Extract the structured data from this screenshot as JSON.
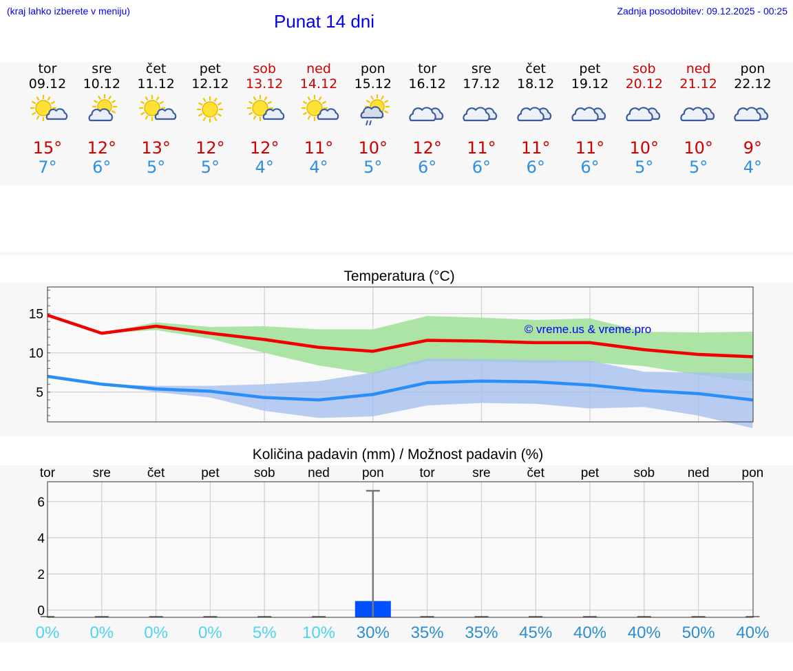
{
  "header": {
    "hint": "(kraj lahko izberete v meniju)",
    "title": "Punat 14 dni",
    "updated": "Zadnja posodobitev: 09.12.2025 - 00:25"
  },
  "colors": {
    "link": "#0000ee",
    "tmax": "#cc0000",
    "tmin": "#2e8ee0",
    "max_band": "#a8e3a0",
    "min_band": "#a7c1f0",
    "rain_bar": "#0050ff"
  },
  "days": [
    {
      "name": "tor",
      "date": "09.12",
      "icon": "sun-cloud-icon",
      "max": "15°",
      "min": "7°",
      "weekend": false
    },
    {
      "name": "sre",
      "date": "10.12",
      "icon": "cloud-sun-icon",
      "max": "12°",
      "min": "6°",
      "weekend": false
    },
    {
      "name": "čet",
      "date": "11.12",
      "icon": "sun-cloud-icon",
      "max": "13°",
      "min": "5°",
      "weekend": false
    },
    {
      "name": "pet",
      "date": "12.12",
      "icon": "sun-icon",
      "max": "12°",
      "min": "5°",
      "weekend": false
    },
    {
      "name": "sob",
      "date": "13.12",
      "icon": "sun-cloud-icon",
      "max": "12°",
      "min": "4°",
      "weekend": true
    },
    {
      "name": "ned",
      "date": "14.12",
      "icon": "sun-cloud-icon",
      "max": "11°",
      "min": "4°",
      "weekend": true
    },
    {
      "name": "pon",
      "date": "15.12",
      "icon": "sun-cloud-rain-icon",
      "max": "10°",
      "min": "5°",
      "weekend": false
    },
    {
      "name": "tor",
      "date": "16.12",
      "icon": "cloud-icon",
      "max": "12°",
      "min": "6°",
      "weekend": false
    },
    {
      "name": "sre",
      "date": "17.12",
      "icon": "cloud-icon",
      "max": "11°",
      "min": "6°",
      "weekend": false
    },
    {
      "name": "čet",
      "date": "18.12",
      "icon": "cloud-icon",
      "max": "11°",
      "min": "6°",
      "weekend": false
    },
    {
      "name": "pet",
      "date": "19.12",
      "icon": "cloud-icon",
      "max": "11°",
      "min": "6°",
      "weekend": false
    },
    {
      "name": "sob",
      "date": "20.12",
      "icon": "cloud-icon",
      "max": "10°",
      "min": "5°",
      "weekend": true
    },
    {
      "name": "ned",
      "date": "21.12",
      "icon": "cloud-icon",
      "max": "10°",
      "min": "5°",
      "weekend": true
    },
    {
      "name": "pon",
      "date": "22.12",
      "icon": "cloud-icon",
      "max": "9°",
      "min": "4°",
      "weekend": false
    }
  ],
  "chart_data": [
    {
      "type": "line",
      "title": "Temperatura (°C)",
      "watermark": "© vreme.us & vreme.pro",
      "ylim": [
        1.2,
        18.4
      ],
      "yticks": [
        5,
        10,
        15
      ],
      "series": [
        {
          "name": "max",
          "values": [
            14.8,
            12.5,
            13.4,
            12.5,
            11.7,
            10.7,
            10.2,
            11.6,
            11.5,
            11.3,
            11.3,
            10.4,
            9.8,
            9.5
          ]
        },
        {
          "name": "min",
          "values": [
            7.0,
            6.0,
            5.4,
            5.1,
            4.3,
            4.0,
            4.7,
            6.2,
            6.4,
            6.3,
            5.9,
            5.2,
            4.8,
            4.0
          ]
        }
      ],
      "bands": [
        {
          "name": "max_range",
          "low": [
            14.8,
            12.5,
            12.9,
            11.8,
            10.0,
            8.4,
            7.3,
            8.9,
            8.9,
            8.7,
            8.8,
            8.3,
            7.2,
            6.3
          ],
          "high": [
            14.8,
            12.5,
            13.9,
            13.3,
            13.4,
            13.0,
            13.0,
            14.7,
            14.5,
            14.2,
            14.4,
            12.7,
            12.6,
            12.7
          ]
        },
        {
          "name": "min_range",
          "low": [
            7.0,
            6.0,
            5.0,
            4.3,
            2.6,
            1.7,
            1.9,
            3.3,
            3.6,
            3.5,
            2.9,
            3.1,
            2.0,
            0.4
          ],
          "high": [
            7.0,
            6.0,
            5.8,
            5.8,
            6.0,
            6.4,
            7.5,
            9.3,
            9.2,
            9.1,
            9.0,
            7.6,
            7.5,
            7.4
          ]
        }
      ]
    },
    {
      "type": "bar",
      "title": "Količina padavin (mm) / Možnost padavin (%)",
      "categories": [
        "tor",
        "sre",
        "čet",
        "pet",
        "sob",
        "ned",
        "pon",
        "tor",
        "sre",
        "čet",
        "pet",
        "sob",
        "ned",
        "pon"
      ],
      "values": [
        0,
        0,
        0,
        0,
        0,
        0,
        0.5,
        0,
        0,
        0,
        0,
        0,
        0,
        0
      ],
      "error_high": [
        0,
        0,
        0,
        0,
        0,
        0,
        6.6,
        0,
        0,
        0,
        0,
        0,
        0,
        0
      ],
      "ylim": [
        -0.4,
        7.1
      ],
      "yticks": [
        0,
        2,
        4,
        6
      ],
      "probabilities": [
        "0%",
        "0%",
        "0%",
        "0%",
        "5%",
        "10%",
        "30%",
        "35%",
        "35%",
        "45%",
        "40%",
        "40%",
        "50%",
        "40%"
      ]
    }
  ]
}
